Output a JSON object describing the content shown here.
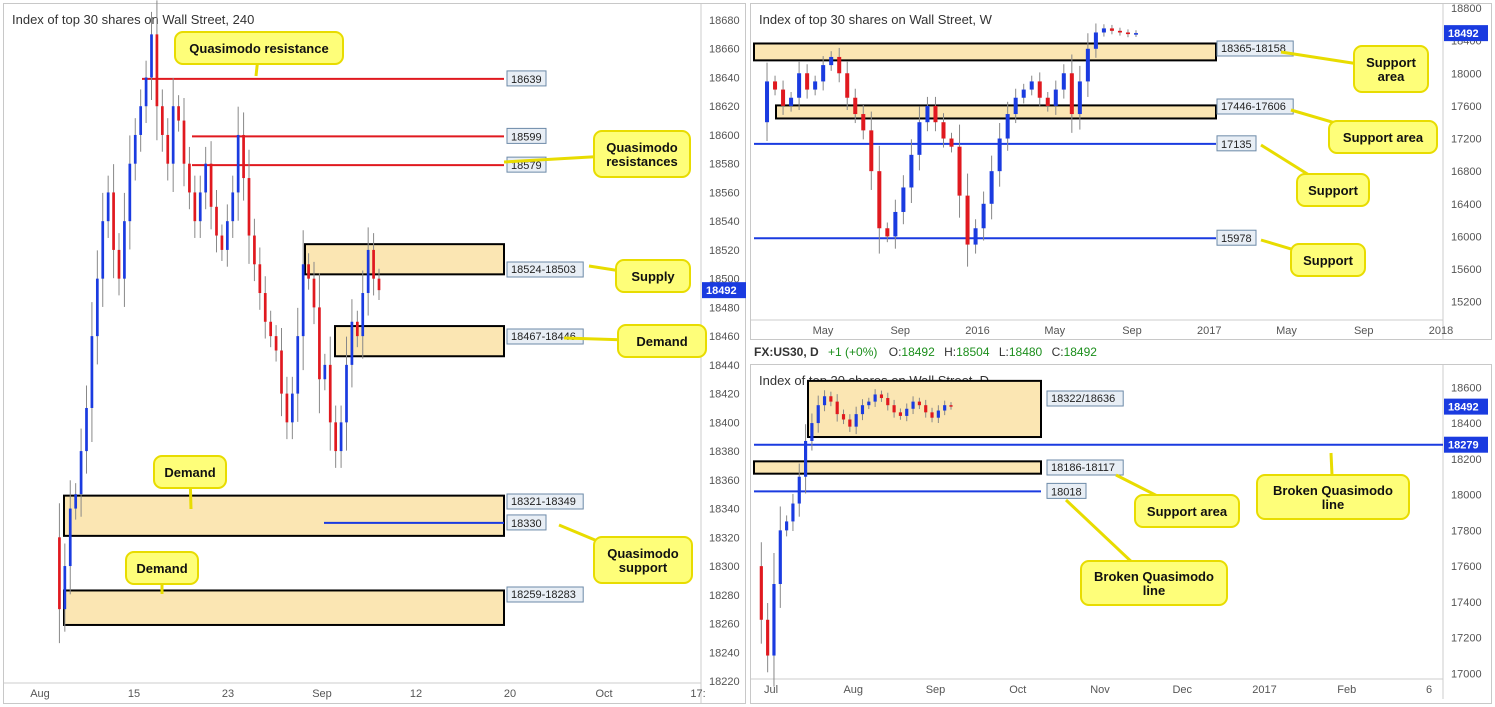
{
  "panels": {
    "h4": {
      "title": "Index of top 30 shares on Wall Street, 240",
      "ylim": [
        18220,
        18680
      ],
      "yticks": [
        18220,
        18240,
        18260,
        18280,
        18300,
        18320,
        18340,
        18360,
        18380,
        18400,
        18420,
        18440,
        18460,
        18480,
        18500,
        18520,
        18540,
        18560,
        18580,
        18600,
        18620,
        18640,
        18660,
        18680
      ],
      "xlabels": [
        "Aug",
        "15",
        "23",
        "Sep",
        "12",
        "20",
        "Oct",
        "17:"
      ],
      "current_price": "18492",
      "zones": [
        {
          "top": 18524,
          "bottom": 18503,
          "label": "18524-18503"
        },
        {
          "top": 18467,
          "bottom": 18446,
          "label": "18467-18446"
        },
        {
          "top": 18349,
          "bottom": 18321,
          "label": "18321-18349"
        },
        {
          "top": 18283,
          "bottom": 18259,
          "label": "18259-18283"
        }
      ],
      "lines": [
        {
          "y": 18639,
          "color": "#e0191f",
          "label": "18639"
        },
        {
          "y": 18599,
          "color": "#e0191f",
          "label": "18599"
        },
        {
          "y": 18579,
          "color": "#e0191f",
          "label": "18579"
        },
        {
          "y": 18330,
          "color": "#1a3be0",
          "label": "18330"
        }
      ],
      "callouts": [
        "Quasimodo resistance",
        "Quasimodo\nresistances",
        "Supply",
        "Demand",
        "Demand",
        "Quasimodo\nsupport",
        "Demand"
      ]
    },
    "weekly": {
      "title": "Index of top 30 shares on Wall Street, W",
      "ylim": [
        15000,
        18800
      ],
      "yticks": [
        15200,
        15600,
        16000,
        16400,
        16800,
        17200,
        17600,
        18000,
        18400,
        18800
      ],
      "xlabels": [
        "May",
        "Sep",
        "2016",
        "May",
        "Sep",
        "2017",
        "May",
        "Sep",
        "2018"
      ],
      "current_price": "18492",
      "zones": [
        {
          "top": 18365,
          "bottom": 18158,
          "label": "18365-18158"
        },
        {
          "top": 17606,
          "bottom": 17446,
          "label": "17446-17606"
        }
      ],
      "lines": [
        {
          "y": 17135,
          "color": "#1a3be0",
          "label": "17135"
        },
        {
          "y": 15978,
          "color": "#1a3be0",
          "label": "15978"
        }
      ],
      "callouts": [
        "Support\narea",
        "Support area",
        "Support",
        "Support"
      ]
    },
    "daily": {
      "title": "Index of top 30 shares on Wall Street, D",
      "header": "FX:US30, D",
      "ohlc": {
        "change": "+1 (+0%)",
        "o": "18492",
        "h": "18504",
        "l": "18480",
        "c": "18492"
      },
      "ylim": [
        16980,
        18680
      ],
      "yticks": [
        17000,
        17200,
        17400,
        17600,
        17800,
        18000,
        18200,
        18400,
        18600
      ],
      "extra_ytick": "18279",
      "xlabels": [
        "Jul",
        "Aug",
        "Sep",
        "Oct",
        "Nov",
        "Dec",
        "2017",
        "Feb",
        "6"
      ],
      "current_price": "18492",
      "zones": [
        {
          "top": 18636,
          "bottom": 18322,
          "label": "18322/18636"
        },
        {
          "top": 18186,
          "bottom": 18117,
          "label": "18186-18117"
        }
      ],
      "lines": [
        {
          "y": 18279,
          "color": "#1a3be0",
          "label": ""
        },
        {
          "y": 18018,
          "color": "#1a3be0",
          "label": "18018"
        }
      ],
      "callouts": [
        "Broken Quasimodo\nline",
        "Support area",
        "Broken Quasimodo\nline"
      ]
    }
  },
  "colors": {
    "bull": "#1a3be0",
    "bear": "#e0191f",
    "zone": "#fbe6b3",
    "callout": "#fefe79",
    "callout_border": "#e8dc00"
  },
  "chart_data": [
    {
      "type": "candlestick",
      "title": "Index of top 30 shares on Wall Street, 240",
      "ylim": [
        18220,
        18680
      ],
      "close_path": [
        18320,
        18270,
        18300,
        18340,
        18350,
        18380,
        18410,
        18460,
        18500,
        18540,
        18560,
        18520,
        18500,
        18540,
        18580,
        18600,
        18620,
        18640,
        18670,
        18620,
        18600,
        18580,
        18620,
        18610,
        18580,
        18560,
        18540,
        18560,
        18580,
        18550,
        18530,
        18520,
        18540,
        18560,
        18600,
        18570,
        18530,
        18510,
        18490,
        18470,
        18460,
        18450,
        18420,
        18400,
        18420,
        18460,
        18510,
        18500,
        18480,
        18430,
        18440,
        18400,
        18380,
        18400,
        18440,
        18470,
        18460,
        18490,
        18520,
        18500,
        18492
      ],
      "current": 18492
    },
    {
      "type": "candlestick",
      "title": "Index of top 30 shares on Wall Street, W",
      "ylim": [
        15000,
        18800
      ],
      "close_path": [
        17400,
        17900,
        17800,
        17600,
        17700,
        18000,
        17800,
        17900,
        18100,
        18200,
        18000,
        17700,
        17500,
        17300,
        16800,
        16100,
        16000,
        16300,
        16600,
        17000,
        17400,
        17600,
        17400,
        17200,
        17100,
        16500,
        15900,
        16100,
        16400,
        16800,
        17200,
        17500,
        17700,
        17800,
        17900,
        17700,
        17600,
        17800,
        18000,
        17500,
        17900,
        18300,
        18500,
        18550,
        18520,
        18500,
        18480,
        18492
      ],
      "current": 18492
    },
    {
      "type": "candlestick",
      "title": "Index of top 30 shares on Wall Street, D",
      "ylim": [
        16980,
        18680
      ],
      "close_path": [
        17600,
        17300,
        17100,
        17500,
        17800,
        17850,
        17950,
        18100,
        18300,
        18400,
        18500,
        18550,
        18520,
        18450,
        18420,
        18380,
        18450,
        18500,
        18520,
        18560,
        18540,
        18500,
        18460,
        18440,
        18480,
        18520,
        18500,
        18460,
        18430,
        18470,
        18500,
        18492
      ],
      "current": 18492
    }
  ]
}
